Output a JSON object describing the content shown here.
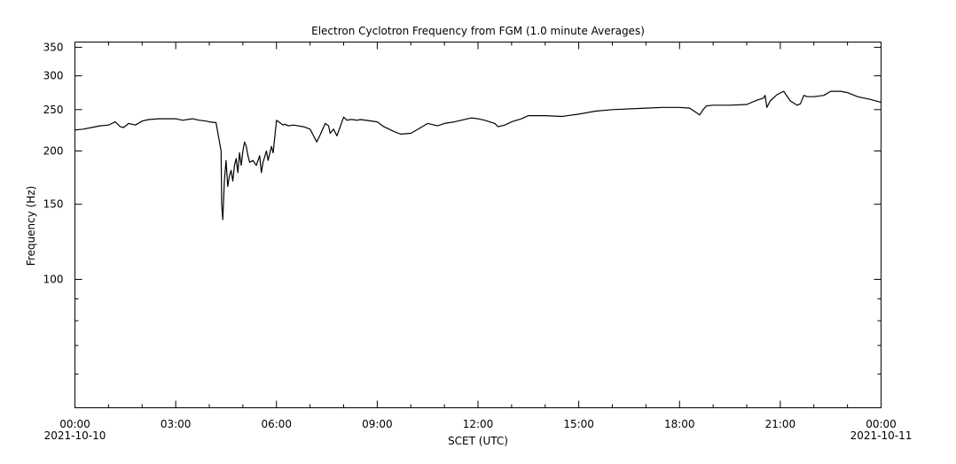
{
  "chart_data": {
    "type": "line",
    "title": "Electron Cyclotron Frequency from FGM (1.0 minute Averages)",
    "xlabel": "SCET (UTC)",
    "ylabel": "Frequency (Hz)",
    "y_scale": "log",
    "ylim": [
      50,
      360
    ],
    "xlim_hours": [
      0,
      24
    ],
    "grid": false,
    "y_ticks": [
      {
        "value": 100,
        "label": "100"
      },
      {
        "value": 150,
        "label": "150"
      },
      {
        "value": 200,
        "label": "200"
      },
      {
        "value": 250,
        "label": "250"
      },
      {
        "value": 300,
        "label": "300"
      },
      {
        "value": 350,
        "label": "350"
      }
    ],
    "x_ticks": [
      {
        "hour": 0,
        "label": "00:00",
        "date": "2021-10-10"
      },
      {
        "hour": 3,
        "label": "03:00",
        "date": ""
      },
      {
        "hour": 6,
        "label": "06:00",
        "date": ""
      },
      {
        "hour": 9,
        "label": "09:00",
        "date": ""
      },
      {
        "hour": 12,
        "label": "12:00",
        "date": ""
      },
      {
        "hour": 15,
        "label": "15:00",
        "date": ""
      },
      {
        "hour": 18,
        "label": "18:00",
        "date": ""
      },
      {
        "hour": 21,
        "label": "21:00",
        "date": ""
      },
      {
        "hour": 24,
        "label": "00:00",
        "date": "2021-10-11"
      }
    ],
    "series": [
      {
        "name": "",
        "color": "#000000",
        "x_hours": [
          0,
          0.25,
          0.5,
          0.75,
          1.0,
          1.2,
          1.35,
          1.45,
          1.6,
          1.8,
          2.0,
          2.2,
          2.5,
          3.0,
          3.2,
          3.5,
          3.7,
          3.9,
          4.0,
          4.2,
          4.35,
          4.37,
          4.4,
          4.45,
          4.5,
          4.55,
          4.6,
          4.65,
          4.7,
          4.75,
          4.8,
          4.85,
          4.9,
          4.95,
          5.0,
          5.05,
          5.1,
          5.15,
          5.2,
          5.3,
          5.4,
          5.5,
          5.55,
          5.6,
          5.7,
          5.75,
          5.85,
          5.9,
          6.0,
          6.1,
          6.2,
          6.25,
          6.35,
          6.5,
          6.8,
          7.0,
          7.2,
          7.3,
          7.45,
          7.55,
          7.6,
          7.7,
          7.8,
          8.0,
          8.1,
          8.2,
          8.25,
          8.4,
          8.5,
          9.0,
          9.2,
          9.5,
          9.7,
          10.0,
          10.3,
          10.5,
          10.8,
          11.0,
          11.3,
          11.5,
          11.8,
          12.0,
          12.2,
          12.5,
          12.6,
          12.8,
          13.0,
          13.3,
          13.5,
          13.8,
          14.0,
          14.5,
          15.0,
          15.5,
          16.0,
          17.0,
          17.5,
          18.0,
          18.3,
          18.6,
          18.7,
          18.8,
          19.0,
          19.5,
          20.0,
          20.3,
          20.5,
          20.55,
          20.6,
          20.7,
          20.9,
          21.1,
          21.3,
          21.5,
          21.6,
          21.7,
          21.8,
          22.0,
          22.3,
          22.5,
          22.8,
          23.0,
          23.3,
          23.5,
          23.7,
          24.0
        ],
        "values": [
          224,
          225,
          227,
          229,
          230,
          234,
          228,
          227,
          232,
          230,
          235,
          237,
          238,
          238,
          236,
          238,
          236,
          235,
          234,
          233,
          200,
          150,
          138,
          170,
          190,
          165,
          175,
          180,
          170,
          185,
          192,
          178,
          198,
          185,
          200,
          210,
          205,
          195,
          188,
          190,
          185,
          195,
          178,
          188,
          200,
          190,
          205,
          198,
          236,
          233,
          230,
          231,
          229,
          230,
          228,
          225,
          210,
          218,
          232,
          229,
          220,
          225,
          217,
          240,
          236,
          237,
          237,
          236,
          237,
          234,
          228,
          222,
          219,
          220,
          227,
          232,
          229,
          232,
          234,
          236,
          239,
          238,
          236,
          232,
          228,
          230,
          234,
          238,
          242,
          242,
          242,
          241,
          244,
          248,
          250,
          252,
          253,
          253,
          252,
          243,
          250,
          255,
          256,
          256,
          257,
          263,
          266,
          270,
          253,
          262,
          271,
          276,
          262,
          256,
          258,
          270,
          268,
          268,
          270,
          276,
          276,
          274,
          268,
          266,
          264,
          260
        ]
      }
    ]
  }
}
